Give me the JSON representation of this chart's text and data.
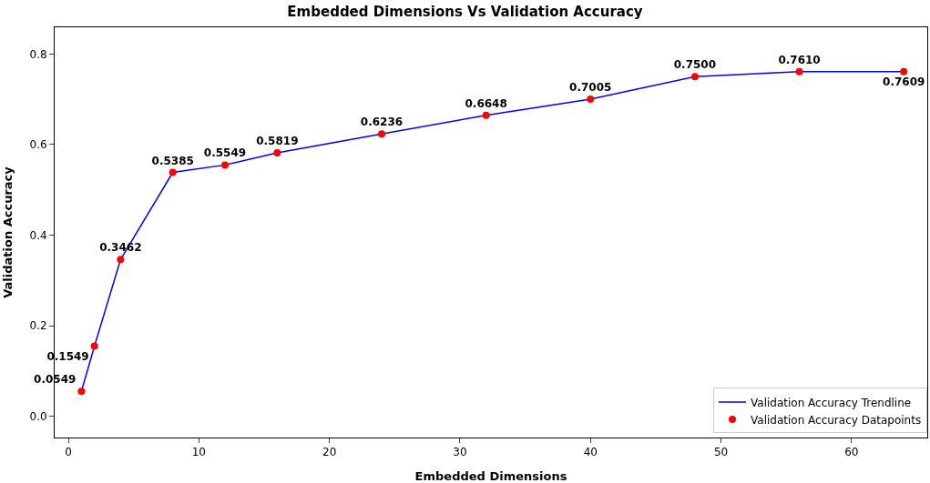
{
  "chart_data": {
    "type": "line",
    "title": "Embedded Dimensions Vs Validation Accuracy",
    "xlabel": "Embedded Dimensions",
    "ylabel": "Validation Accuracy",
    "x": [
      1,
      2,
      4,
      8,
      12,
      16,
      24,
      32,
      40,
      48,
      56,
      64
    ],
    "series": [
      {
        "name": "Validation Accuracy Trendline",
        "color": "#0000ff",
        "marker": "none",
        "values": [
          0.0549,
          0.1549,
          0.3462,
          0.5385,
          0.5549,
          0.5819,
          0.6236,
          0.6648,
          0.7005,
          0.75,
          0.761,
          0.7609
        ]
      },
      {
        "name": "Validation Accuracy Datapoints",
        "type": "scatter",
        "color": "#ff0000",
        "marker": "circle",
        "values": [
          0.0549,
          0.1549,
          0.3462,
          0.5385,
          0.5549,
          0.5819,
          0.6236,
          0.6648,
          0.7005,
          0.75,
          0.761,
          0.7609
        ],
        "value_labels": [
          "0.0549",
          "0.1549",
          "0.3462",
          "0.5385",
          "0.5549",
          "0.5819",
          "0.6236",
          "0.6648",
          "0.7005",
          "0.7500",
          "0.7610",
          "0.7609"
        ]
      }
    ],
    "xlim": [
      -1.05,
      65.8
    ],
    "xticks": [
      0,
      10,
      20,
      30,
      40,
      50,
      60
    ],
    "ylim": [
      -0.047,
      0.859
    ],
    "yticks": [
      {
        "value": 0,
        "label": "0.0"
      },
      {
        "value": 0.2,
        "label": "0.2"
      },
      {
        "value": 0.4,
        "label": "0.4"
      },
      {
        "value": 0.6,
        "label": "0.6"
      },
      {
        "value": 0.8,
        "label": "0.8"
      }
    ],
    "grid": false,
    "legend": "bottom right"
  }
}
